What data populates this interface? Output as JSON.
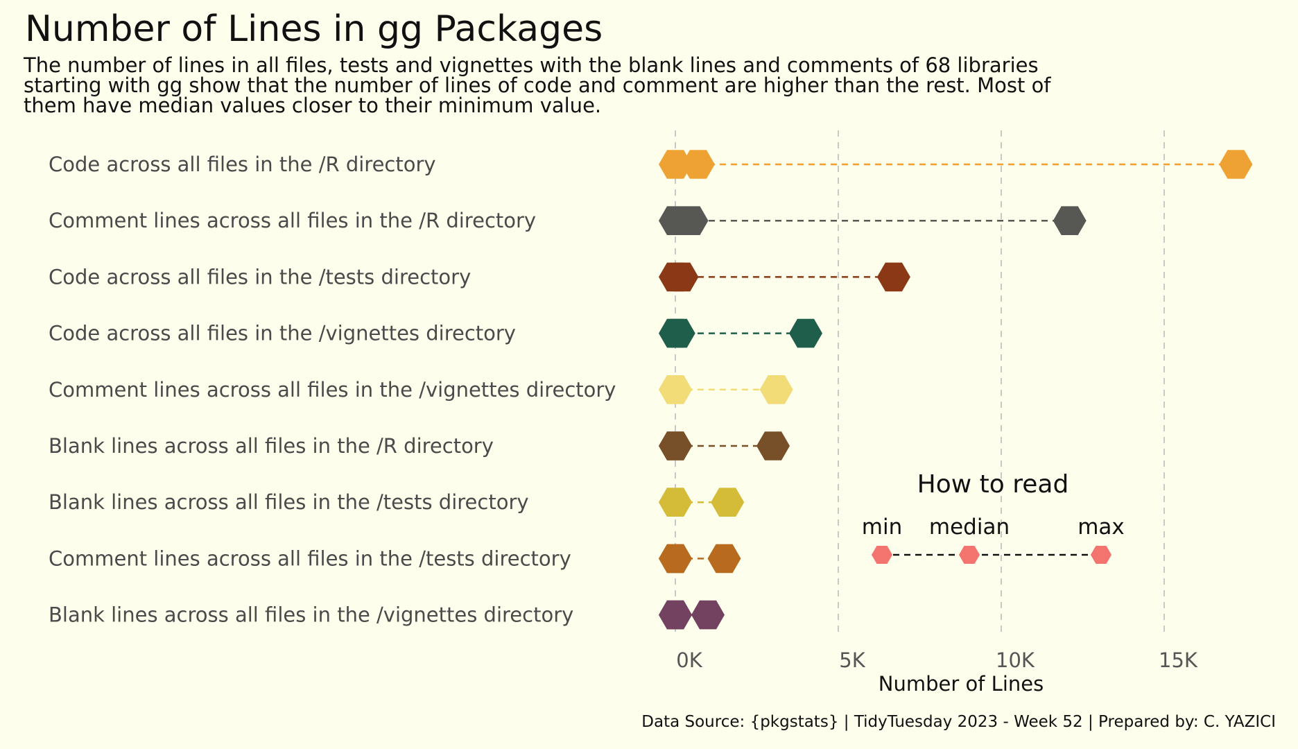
{
  "title": "Number of Lines in gg Packages",
  "subtitle": "The number of lines in all files, tests and vignettes with the blank lines and comments of 68 libraries starting with gg show that the number of lines of code and comment are higher than the rest. Most of them have median values closer to their minimum value.",
  "caption": "Data Source: {pkgstats} | TidyTuesday 2023 - Week 52 | Prepared by: C. YAZICI",
  "chart_data": {
    "type": "dumbbell",
    "xlabel": "Number of Lines",
    "ylabel": "",
    "xlim": [
      -500,
      17500
    ],
    "x_ticks": [
      0,
      5000,
      10000,
      15000
    ],
    "x_tick_labels": [
      "0K",
      "5K",
      "10K",
      "15K"
    ],
    "grid": "vertical dashed",
    "series_fields": [
      "min",
      "median",
      "max"
    ],
    "categories": [
      {
        "label": "Code across all files in the /R directory",
        "min": 0,
        "median": 700,
        "max": 17200,
        "color": "#eea233"
      },
      {
        "label": "Comment lines across all files in the /R directory",
        "min": 0,
        "median": 500,
        "max": 12100,
        "color": "#575754"
      },
      {
        "label": "Code across all files in the /tests directory",
        "min": 0,
        "median": 200,
        "max": 6700,
        "color": "#8b3816"
      },
      {
        "label": "Code across all files in the /vignettes directory",
        "min": 0,
        "median": 100,
        "max": 4000,
        "color": "#1f5e4b"
      },
      {
        "label": "Comment lines across all files in the /vignettes directory",
        "min": 0,
        "median": 0,
        "max": 3100,
        "color": "#f1dc78"
      },
      {
        "label": "Blank lines across all files in the /R directory",
        "min": 0,
        "median": 0,
        "max": 3000,
        "color": "#77502a"
      },
      {
        "label": "Blank lines across all files in the /tests directory",
        "min": 0,
        "median": 0,
        "max": 1600,
        "color": "#d4bb38"
      },
      {
        "label": "Comment lines across all files in the /tests directory",
        "min": 0,
        "median": 0,
        "max": 1500,
        "color": "#b86a1e"
      },
      {
        "label": "Blank lines across all files in the /vignettes directory",
        "min": 0,
        "median": 0,
        "max": 1000,
        "color": "#724260"
      }
    ],
    "legend": {
      "title": "How to read",
      "labels": [
        "min",
        "median",
        "max"
      ],
      "color": "#f47470"
    }
  }
}
